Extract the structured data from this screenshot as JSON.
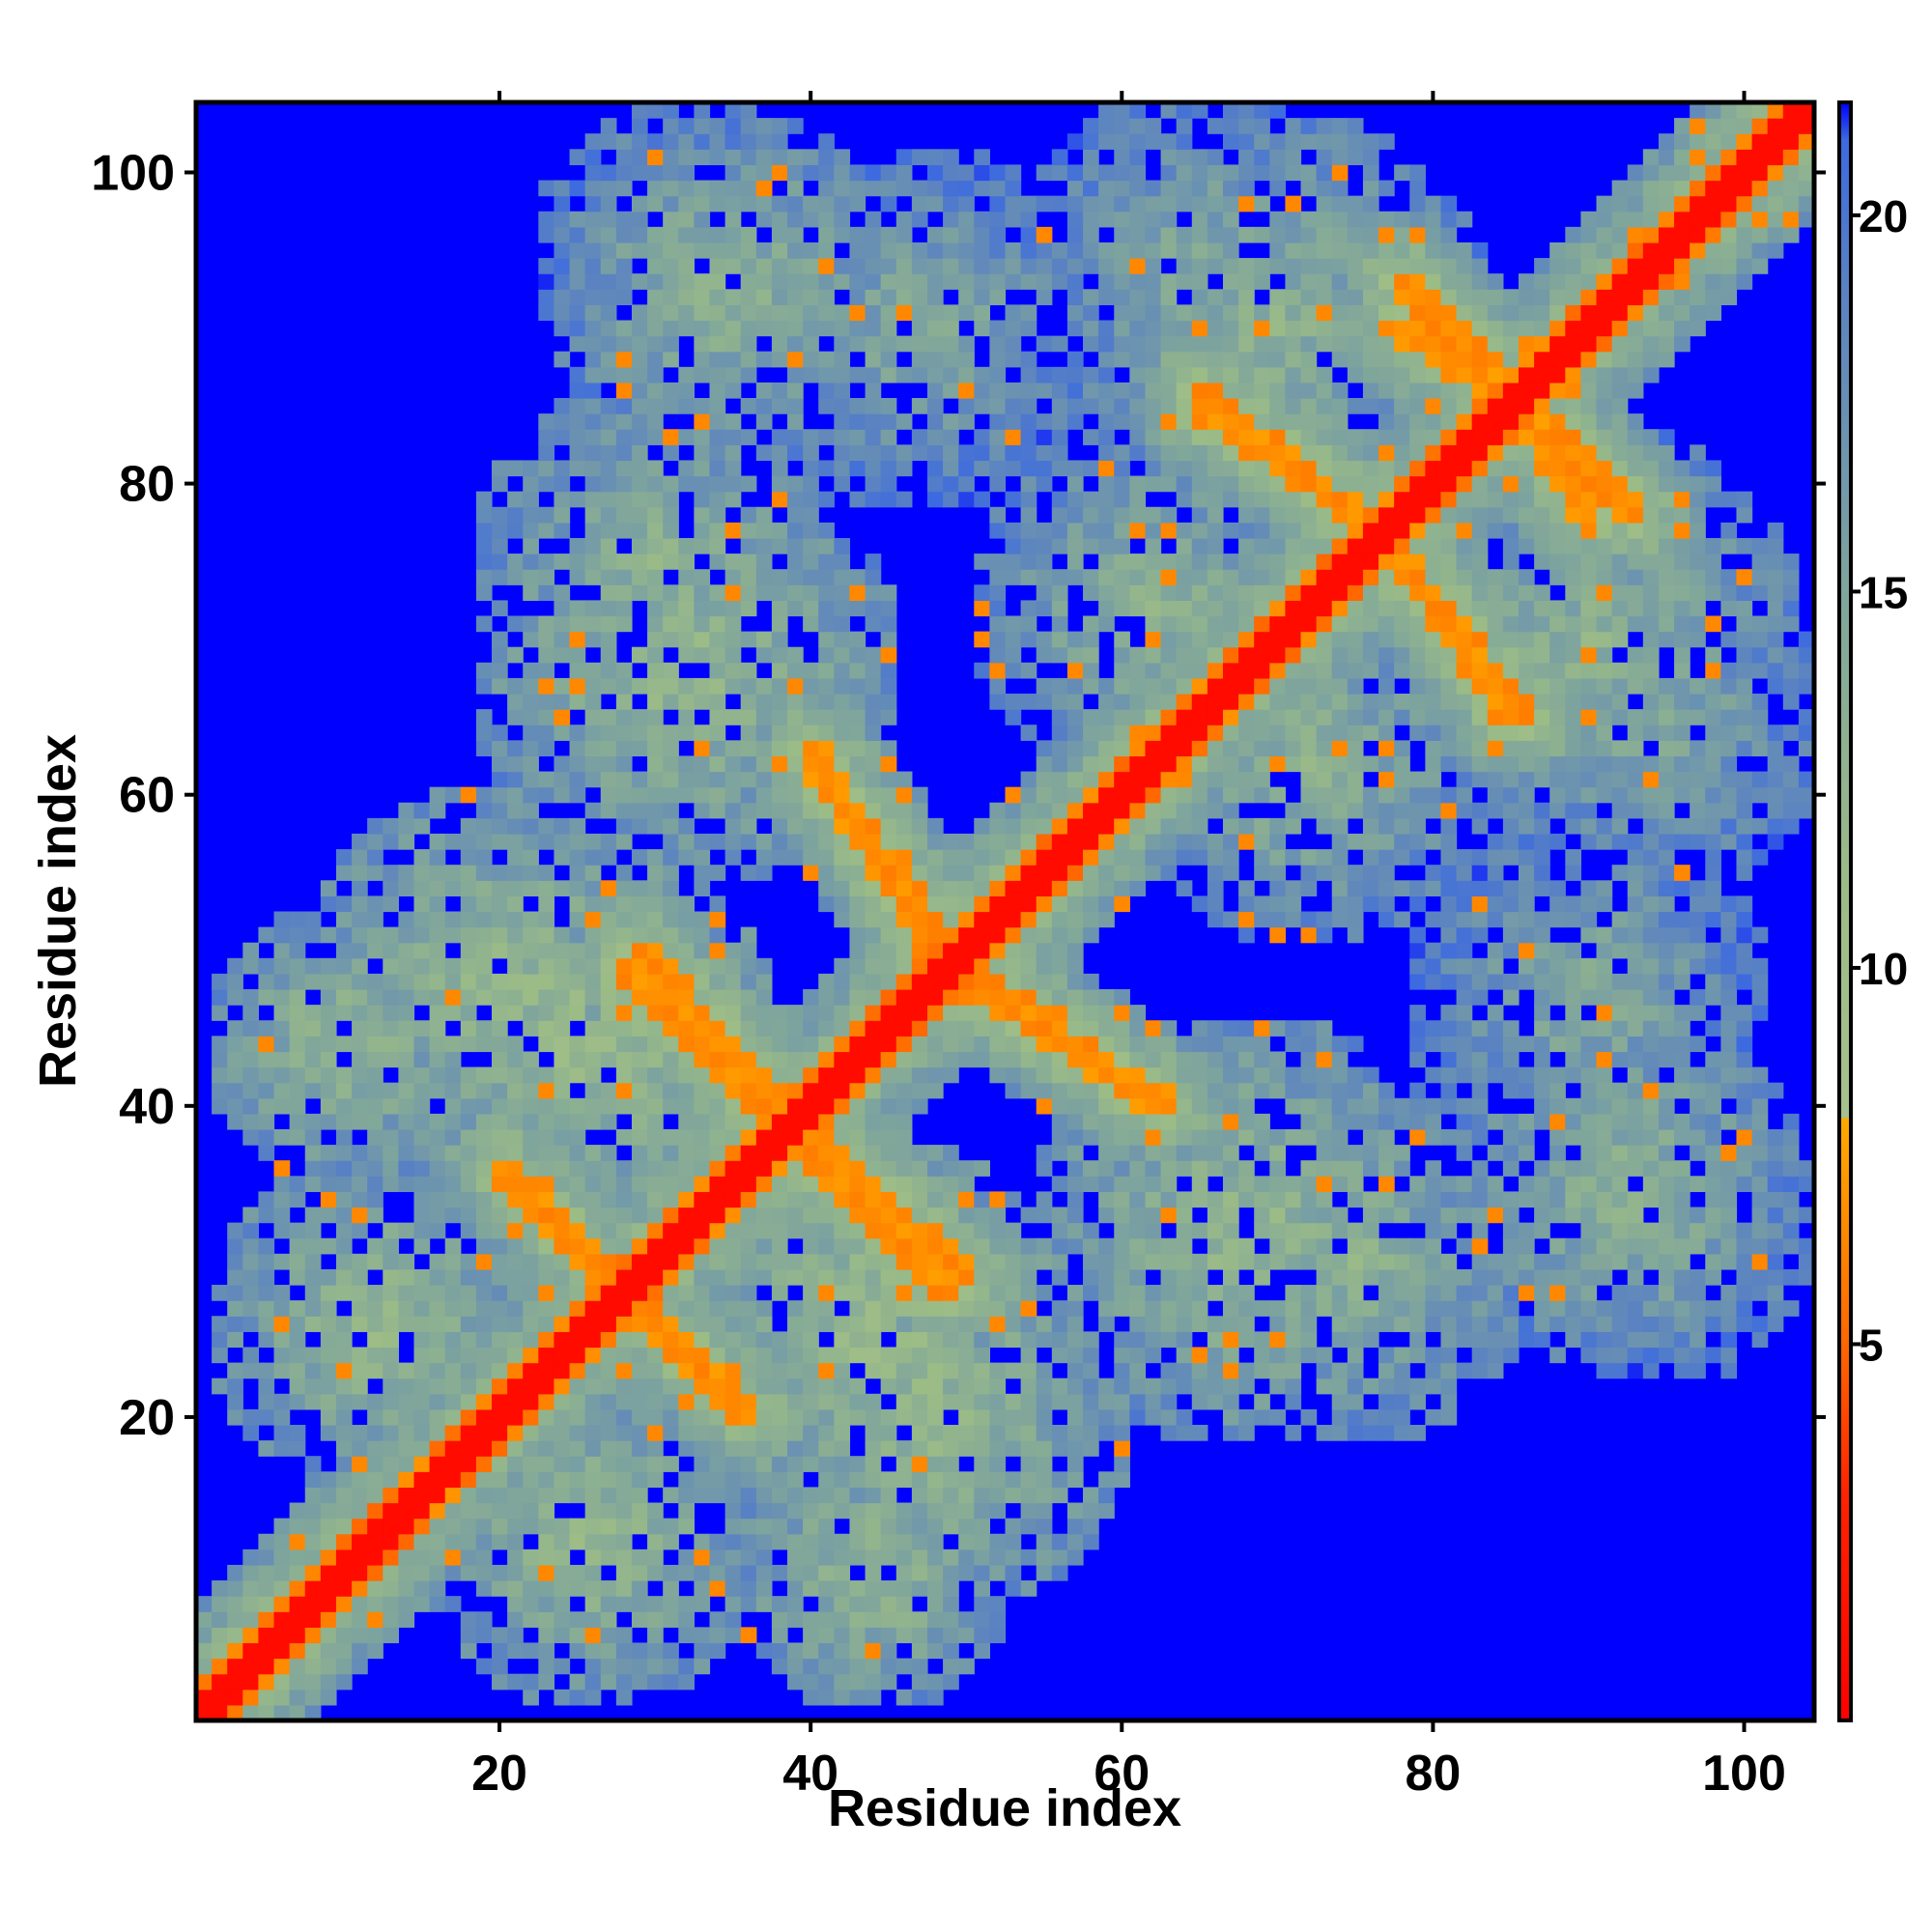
{
  "chart_data": {
    "type": "heatmap",
    "title": "",
    "xlabel": "Residue index",
    "ylabel": "Residue index",
    "xlim": [
      1,
      104
    ],
    "ylim": [
      1,
      104
    ],
    "x_ticks": [
      20,
      40,
      60,
      80,
      100
    ],
    "y_ticks": [
      20,
      40,
      60,
      80,
      100
    ],
    "grid": false,
    "colorbar": {
      "ticks": [
        5,
        10,
        15,
        20
      ],
      "range": [
        0,
        21.5
      ],
      "stops": [
        {
          "value": 0,
          "color": "#ff0000"
        },
        {
          "value": 3,
          "color": "#ff2200"
        },
        {
          "value": 5,
          "color": "#ff6600"
        },
        {
          "value": 8,
          "color": "#ffaa00"
        },
        {
          "value": 8.01,
          "color": "#a6c08e"
        },
        {
          "value": 11,
          "color": "#9cbc86"
        },
        {
          "value": 15,
          "color": "#7fa59c"
        },
        {
          "value": 19,
          "color": "#5a82c2"
        },
        {
          "value": 21,
          "color": "#3c6ae0"
        },
        {
          "value": 21.5,
          "color": "#0000ff"
        }
      ]
    },
    "background_value_color": "#0000ff",
    "diagonal": {
      "core_value": 1,
      "shoulder_value": 5
    },
    "contact_bands": [
      {
        "name": "strand-pair-A",
        "from": [
          20,
          36
        ],
        "to": [
          35,
          21
        ],
        "value": 6
      },
      {
        "name": "strand-pair-B",
        "from": [
          29,
          50
        ],
        "to": [
          38,
          40
        ],
        "value": 6
      },
      {
        "name": "strand-pair-C",
        "from": [
          40,
          37
        ],
        "to": [
          49,
          28
        ],
        "value": 6
      },
      {
        "name": "strand-pair-D",
        "from": [
          40,
          63
        ],
        "to": [
          48,
          50
        ],
        "value": 6
      },
      {
        "name": "strand-pair-E",
        "from": [
          50,
          49
        ],
        "to": [
          62,
          40
        ],
        "value": 6
      },
      {
        "name": "strand-pair-F",
        "from": [
          29,
          27
        ],
        "to": [
          35,
          21
        ],
        "value": 6
      },
      {
        "name": "strand-pair-G",
        "from": [
          65,
          85
        ],
        "to": [
          75,
          78
        ],
        "value": 6
      },
      {
        "name": "strand-pair-H",
        "from": [
          78,
          93
        ],
        "to": [
          85,
          86
        ],
        "value": 6
      },
      {
        "name": "strand-pair-I",
        "from": [
          85,
          85
        ],
        "to": [
          90,
          78
        ],
        "value": 6
      },
      {
        "name": "strand-pair-J",
        "from": [
          77,
          76
        ],
        "to": [
          86,
          65
        ],
        "value": 6
      }
    ],
    "mid_range_blobs": [
      {
        "center": [
          35,
          92
        ],
        "radius": 12,
        "value": 13
      },
      {
        "center": [
          65,
          94
        ],
        "radius": 12,
        "value": 14
      },
      {
        "center": [
          32,
          68
        ],
        "radius": 14,
        "value": 12
      },
      {
        "center": [
          62,
          72
        ],
        "radius": 12,
        "value": 13
      },
      {
        "center": [
          20,
          48
        ],
        "radius": 13,
        "value": 12
      },
      {
        "center": [
          45,
          26
        ],
        "radius": 12,
        "value": 11
      },
      {
        "center": [
          90,
          70
        ],
        "radius": 14,
        "value": 13
      },
      {
        "center": [
          75,
          30
        ],
        "radius": 12,
        "value": 13
      },
      {
        "center": [
          95,
          32
        ],
        "radius": 10,
        "value": 14
      },
      {
        "center": [
          90,
          47
        ],
        "radius": 12,
        "value": 14
      },
      {
        "center": [
          26,
          12
        ],
        "radius": 11,
        "value": 12
      },
      {
        "center": [
          44,
          10
        ],
        "radius": 9,
        "value": 12
      }
    ]
  }
}
